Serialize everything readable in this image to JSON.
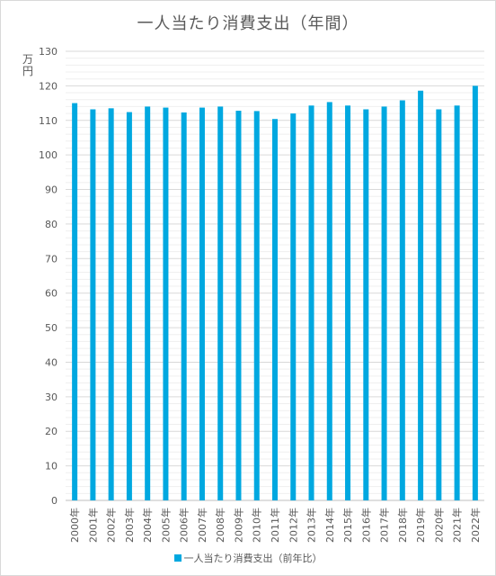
{
  "chart_data": {
    "type": "bar",
    "title": "一人当たり消費支出（年間）",
    "ylabel": "万円",
    "xlabel": "",
    "ylim": [
      0,
      130
    ],
    "ytick_step": 10,
    "grid": true,
    "legend_position": "bottom",
    "categories": [
      "2000年",
      "2001年",
      "2002年",
      "2003年",
      "2004年",
      "2005年",
      "2006年",
      "2007年",
      "2008年",
      "2009年",
      "2010年",
      "2011年",
      "2012年",
      "2013年",
      "2014年",
      "2015年",
      "2016年",
      "2017年",
      "2018年",
      "2019年",
      "2020年",
      "2021年",
      "2022年"
    ],
    "series": [
      {
        "name": "一人当たり消費支出（前年比）",
        "color": "#00a8e0",
        "values": [
          115.0,
          113.2,
          113.5,
          112.4,
          114.0,
          113.7,
          112.3,
          113.7,
          114.0,
          112.8,
          112.7,
          110.4,
          112.0,
          114.3,
          115.3,
          114.3,
          113.2,
          114.0,
          115.8,
          118.6,
          113.2,
          114.3,
          120.0
        ]
      }
    ]
  }
}
